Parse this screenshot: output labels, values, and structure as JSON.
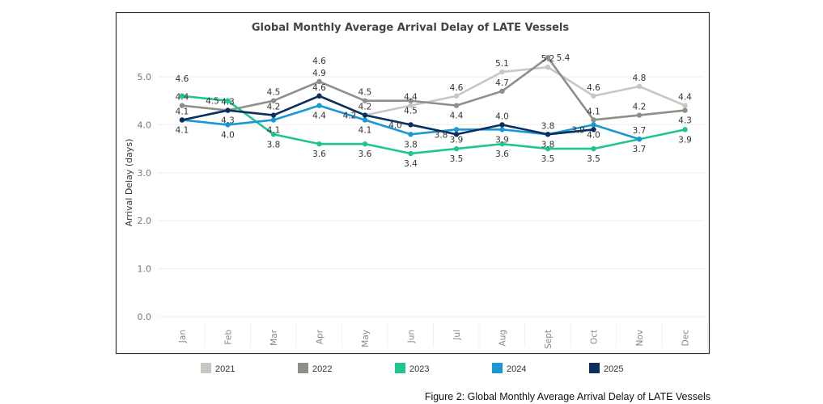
{
  "caption": "Figure 2: Global Monthly Average Arrival Delay of LATE Vessels",
  "chart_data": {
    "type": "line",
    "title": "Global Monthly Average Arrival Delay of LATE Vessels",
    "xlabel": "",
    "ylabel": "Arrival Delay (days)",
    "ylim": [
      0,
      5.6
    ],
    "yticks": [
      "0.0",
      "1.0",
      "2.0",
      "3.0",
      "4.0",
      "5.0"
    ],
    "grid": true,
    "legend_placement": "bottom",
    "categories": [
      "Jan",
      "Feb",
      "Mar",
      "Apr",
      "May",
      "Jun",
      "Jul",
      "Aug",
      "Sept",
      "Oct",
      "Nov",
      "Dec"
    ],
    "series": [
      {
        "name": "2021",
        "color": "#c8c8c3",
        "values": [
          null,
          null,
          null,
          4.6,
          4.2,
          4.4,
          4.6,
          5.1,
          5.2,
          4.6,
          4.8,
          4.4
        ]
      },
      {
        "name": "2022",
        "color": "#8f8f88",
        "values": [
          4.4,
          4.3,
          4.5,
          4.9,
          4.5,
          4.5,
          4.4,
          4.7,
          5.4,
          4.1,
          4.2,
          4.3
        ]
      },
      {
        "name": "2023",
        "color": "#1fc590",
        "values": [
          4.6,
          4.5,
          3.8,
          3.6,
          3.6,
          3.4,
          3.5,
          3.6,
          3.5,
          3.5,
          3.7,
          3.9
        ]
      },
      {
        "name": "2024",
        "color": "#1a98d5",
        "values": [
          4.1,
          4.0,
          4.1,
          4.4,
          4.1,
          3.8,
          3.9,
          3.9,
          3.8,
          4.0,
          3.7,
          null
        ]
      },
      {
        "name": "2025",
        "color": "#0b2e5e",
        "values": [
          4.1,
          4.3,
          4.2,
          4.6,
          4.2,
          4.0,
          3.8,
          4.0,
          3.8,
          3.9,
          null,
          null
        ]
      }
    ]
  }
}
